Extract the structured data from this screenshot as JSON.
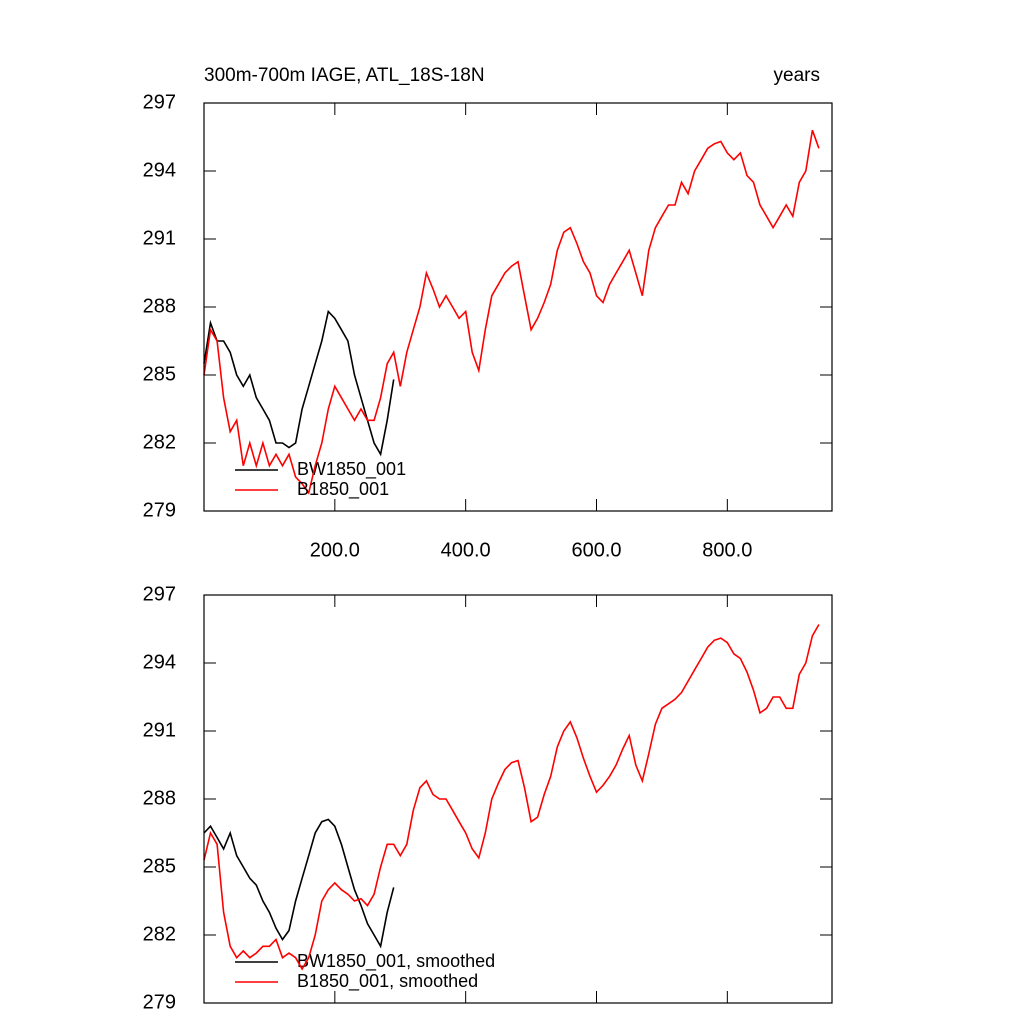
{
  "chart_data": [
    {
      "type": "line",
      "title": "300m-700m IAGE, ATL_18S-18N",
      "right_title": "years",
      "xlim": [
        0,
        960
      ],
      "ylim": [
        279,
        297
      ],
      "xticks": [
        {
          "value": 200,
          "label": "200.0"
        },
        {
          "value": 400,
          "label": "400.0"
        },
        {
          "value": 600,
          "label": "600.0"
        },
        {
          "value": 800,
          "label": "800.0"
        }
      ],
      "yticks": [
        279,
        282,
        285,
        288,
        291,
        294,
        297
      ],
      "legend": "lower left",
      "series": [
        {
          "name": "BW1850_001",
          "color": "#000000",
          "x": [
            0,
            10,
            20,
            30,
            40,
            50,
            60,
            70,
            80,
            90,
            100,
            110,
            120,
            130,
            140,
            150,
            160,
            170,
            180,
            190,
            200,
            210,
            220,
            230,
            240,
            250,
            260,
            270,
            280,
            290
          ],
          "values": [
            285.5,
            287.3,
            286.5,
            286.5,
            286,
            285,
            284.5,
            285,
            284,
            283.5,
            283,
            282,
            282,
            281.8,
            282,
            283.5,
            284.5,
            285.5,
            286.5,
            287.8,
            287.5,
            287,
            286.5,
            285,
            284,
            283,
            282,
            281.5,
            283,
            284.8
          ]
        },
        {
          "name": "B1850_001",
          "color": "#ff0000",
          "x": [
            0,
            10,
            20,
            30,
            40,
            50,
            60,
            70,
            80,
            90,
            100,
            110,
            120,
            130,
            140,
            150,
            160,
            170,
            180,
            190,
            200,
            210,
            220,
            230,
            240,
            250,
            260,
            270,
            280,
            290,
            300,
            310,
            320,
            330,
            340,
            350,
            360,
            370,
            380,
            390,
            400,
            410,
            420,
            430,
            440,
            450,
            460,
            470,
            480,
            490,
            500,
            510,
            520,
            530,
            540,
            550,
            560,
            570,
            580,
            590,
            600,
            610,
            620,
            630,
            640,
            650,
            660,
            670,
            680,
            690,
            700,
            710,
            720,
            730,
            740,
            750,
            760,
            770,
            780,
            790,
            800,
            810,
            820,
            830,
            840,
            850,
            860,
            870,
            880,
            890,
            900,
            910,
            920,
            930,
            940
          ],
          "values": [
            285,
            287,
            286.5,
            284,
            282.5,
            283,
            281,
            282,
            281,
            282,
            281,
            281.5,
            281,
            281.5,
            280.5,
            280.2,
            279.8,
            281,
            282,
            283.5,
            284.5,
            284,
            283.5,
            283,
            283.5,
            283,
            283,
            284,
            285.5,
            286,
            284.5,
            286,
            287,
            288,
            289.5,
            288.8,
            288,
            288.5,
            288,
            287.5,
            287.8,
            286,
            285.2,
            287,
            288.5,
            289,
            289.5,
            289.8,
            290,
            288.5,
            287,
            287.5,
            288.2,
            289,
            290.5,
            291.3,
            291.5,
            290.8,
            290,
            289.5,
            288.5,
            288.2,
            289,
            289.5,
            290,
            290.5,
            289.5,
            288.5,
            290.5,
            291.5,
            292,
            292.5,
            292.5,
            293.5,
            293,
            294,
            294.5,
            295,
            295.2,
            295.3,
            294.8,
            294.5,
            294.8,
            293.8,
            293.5,
            292.5,
            292,
            291.5,
            292,
            292.5,
            292,
            293.5,
            294,
            295.8,
            295
          ]
        }
      ]
    },
    {
      "type": "line",
      "xlim": [
        0,
        960
      ],
      "ylim": [
        279,
        297
      ],
      "xticks": [
        200,
        400,
        600,
        800
      ],
      "xtick_labels": false,
      "yticks": [
        279,
        282,
        285,
        288,
        291,
        294,
        297
      ],
      "legend": "lower left",
      "series": [
        {
          "name": "BW1850_001, smoothed",
          "color": "#000000",
          "x": [
            0,
            10,
            20,
            30,
            40,
            50,
            60,
            70,
            80,
            90,
            100,
            110,
            120,
            130,
            140,
            150,
            160,
            170,
            180,
            190,
            200,
            210,
            220,
            230,
            240,
            250,
            260,
            270,
            280,
            290
          ],
          "values": [
            286.5,
            286.8,
            286.3,
            285.8,
            286.5,
            285.5,
            285,
            284.5,
            284.2,
            283.5,
            283,
            282.3,
            281.8,
            282.2,
            283.5,
            284.5,
            285.5,
            286.5,
            287,
            287.1,
            286.8,
            286,
            285,
            284,
            283.3,
            282.5,
            282,
            281.5,
            283,
            284.1
          ]
        },
        {
          "name": "B1850_001, smoothed",
          "color": "#ff0000",
          "x": [
            0,
            10,
            20,
            30,
            40,
            50,
            60,
            70,
            80,
            90,
            100,
            110,
            120,
            130,
            140,
            150,
            160,
            170,
            180,
            190,
            200,
            210,
            220,
            230,
            240,
            250,
            260,
            270,
            280,
            290,
            300,
            310,
            320,
            330,
            340,
            350,
            360,
            370,
            380,
            390,
            400,
            410,
            420,
            430,
            440,
            450,
            460,
            470,
            480,
            490,
            500,
            510,
            520,
            530,
            540,
            550,
            560,
            570,
            580,
            590,
            600,
            610,
            620,
            630,
            640,
            650,
            660,
            670,
            680,
            690,
            700,
            710,
            720,
            730,
            740,
            750,
            760,
            770,
            780,
            790,
            800,
            810,
            820,
            830,
            840,
            850,
            860,
            870,
            880,
            890,
            900,
            910,
            920,
            930,
            940
          ],
          "values": [
            285.3,
            286.5,
            286,
            283,
            281.5,
            281,
            281.3,
            281,
            281.2,
            281.5,
            281.5,
            281.8,
            281,
            281.2,
            281,
            280.5,
            281,
            282,
            283.5,
            284,
            284.3,
            284,
            283.8,
            283.5,
            283.6,
            283.3,
            283.8,
            285,
            286,
            286,
            285.5,
            286,
            287.5,
            288.5,
            288.8,
            288.2,
            288,
            288,
            287.5,
            287,
            286.5,
            285.8,
            285.4,
            286.5,
            288,
            288.7,
            289.3,
            289.6,
            289.7,
            288.5,
            287,
            287.2,
            288.2,
            289,
            290.3,
            291,
            291.4,
            290.7,
            289.8,
            289,
            288.3,
            288.6,
            289,
            289.5,
            290.2,
            290.8,
            289.5,
            288.8,
            290,
            291.3,
            292,
            292.2,
            292.4,
            292.7,
            293.2,
            293.7,
            294.2,
            294.7,
            295,
            295.1,
            294.9,
            294.4,
            294.2,
            293.6,
            292.8,
            291.8,
            292,
            292.5,
            292.5,
            292,
            292,
            293.5,
            294,
            295.2,
            295.7
          ]
        }
      ]
    }
  ]
}
